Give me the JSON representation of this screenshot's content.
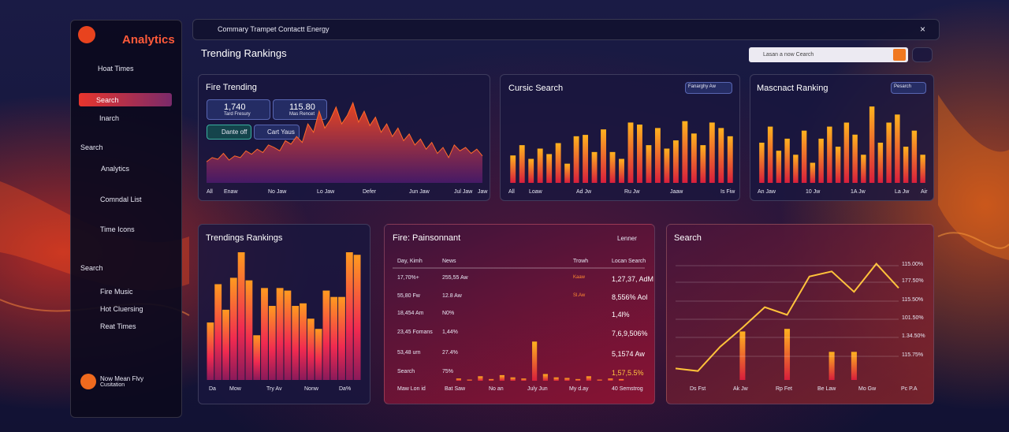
{
  "sidebar": {
    "brand": "Analytics",
    "items": [
      "Hoat Times",
      "Search",
      "Inarch"
    ],
    "section1": "Search",
    "items2": [
      "Analytics",
      "Comndal List",
      "Time Icons"
    ],
    "section2": "Search",
    "items3": [
      "Fire Music",
      "Hot Cluersing",
      "Reat Times"
    ],
    "footer": [
      "Now Mean Flvy",
      "Cusitation"
    ]
  },
  "topbar": {
    "query": "Commary Trampet Contactt Energy"
  },
  "header": {
    "title": "Trending Rankings",
    "search_placeholder": "Lasan a now Cearch"
  },
  "panels": {
    "fire_trending": {
      "title": "Fire Trending",
      "stats": [
        {
          "value": "1,740",
          "label": "Tard Fresury"
        },
        {
          "value": "115.80",
          "label": "Mas Rencet"
        }
      ],
      "buttons": [
        "Dante off",
        "Cart Yaus"
      ],
      "x_labels": [
        "All",
        "Enaw",
        "No Jaw",
        "Lo Jaw",
        "Defer",
        "Jun Jaw",
        "Jul Jaw",
        "Jaw"
      ],
      "values": [
        25,
        30,
        28,
        35,
        27,
        32,
        30,
        38,
        34,
        40,
        36,
        45,
        42,
        38,
        50,
        46,
        55,
        48,
        70,
        60,
        85,
        65,
        75,
        90,
        70,
        80,
        95,
        72,
        85,
        68,
        78,
        60,
        70,
        55,
        65,
        50,
        58,
        45,
        52,
        40,
        48,
        35,
        42,
        30,
        45,
        38,
        42,
        35,
        40,
        32
      ]
    },
    "cursic_search": {
      "title": "Cursic Search",
      "filter": "Fanarghy Aw",
      "x_labels": [
        "All",
        "Loaw",
        "Ad Jw",
        "Ru Jw",
        "Jaaw",
        "Is Fiw"
      ],
      "values": [
        40,
        55,
        35,
        50,
        42,
        58,
        28,
        68,
        70,
        45,
        78,
        45,
        35,
        88,
        85,
        55,
        80,
        50,
        62,
        90,
        72,
        55,
        88,
        80,
        68
      ]
    },
    "mascnact_ranking": {
      "title": "Mascnact Ranking",
      "filter": "Pesarch",
      "x_labels": [
        "An Jaw",
        "10 Jw",
        "1A Jw",
        "La Jw",
        "Air"
      ],
      "values": [
        50,
        70,
        40,
        55,
        35,
        65,
        25,
        55,
        70,
        45,
        75,
        60,
        35,
        95,
        50,
        75,
        85,
        45,
        65,
        35
      ]
    },
    "trendings_rankings": {
      "title": "Trendings Rankings",
      "x_labels": [
        "Da",
        "Mow",
        "Try Av",
        "Nonw",
        "Da%"
      ],
      "values": [
        45,
        75,
        55,
        80,
        100,
        78,
        35,
        72,
        58,
        72,
        70,
        58,
        60,
        48,
        40,
        70,
        65,
        65,
        100,
        98
      ]
    },
    "fire_painsonnant": {
      "title": "Fire: Painsonnant",
      "legend": "Lenner",
      "headers": [
        "Day, Kimh",
        "News",
        "Trowh",
        "Locan Search"
      ],
      "rows": [
        {
          "day": "17,70%+",
          "news": "255,55 Aw",
          "trend": "Kaaw",
          "search": "1,27,37, AdM"
        },
        {
          "day": "55,80 Fw",
          "news": "12.8 Aw",
          "trend": "Sl.Aw",
          "search": "8,556% Aol"
        },
        {
          "day": "18,454 Am",
          "news": "N0%",
          "search": "1,4l%"
        },
        {
          "day": "23,45 Fomans",
          "news": "1,44%",
          "search": "7,6,9,506%"
        },
        {
          "day": "53,48 urn",
          "news": "27.4%",
          "search": "5,1574 Aw"
        },
        {
          "day": "Search",
          "news": "75%",
          "search": "1,57,5.5%"
        }
      ],
      "x_labels": [
        "Maw Lon id",
        "Bat Saw",
        "No an",
        "July Jun",
        "My d.ay",
        "40 Semstrog"
      ],
      "values": [
        4,
        2,
        8,
        3,
        10,
        6,
        4,
        70,
        12,
        6,
        5,
        3,
        8,
        2,
        4,
        3
      ]
    },
    "search": {
      "title": "Search",
      "axis_labels": [
        "115.00%",
        "177.50%",
        "115.50%",
        "101.50%",
        "1.34.50%",
        "115.75%"
      ],
      "x_labels": [
        "Ds Fst",
        "Ak Jw",
        "Rp Fet",
        "Be Law",
        "Mo Gw",
        "Pc P.A"
      ],
      "line": [
        9,
        7,
        26,
        41,
        57,
        51,
        81,
        85,
        69,
        91,
        72
      ],
      "bars": [
        null,
        null,
        null,
        38,
        null,
        40,
        null,
        22,
        22,
        null,
        null
      ]
    }
  }
}
